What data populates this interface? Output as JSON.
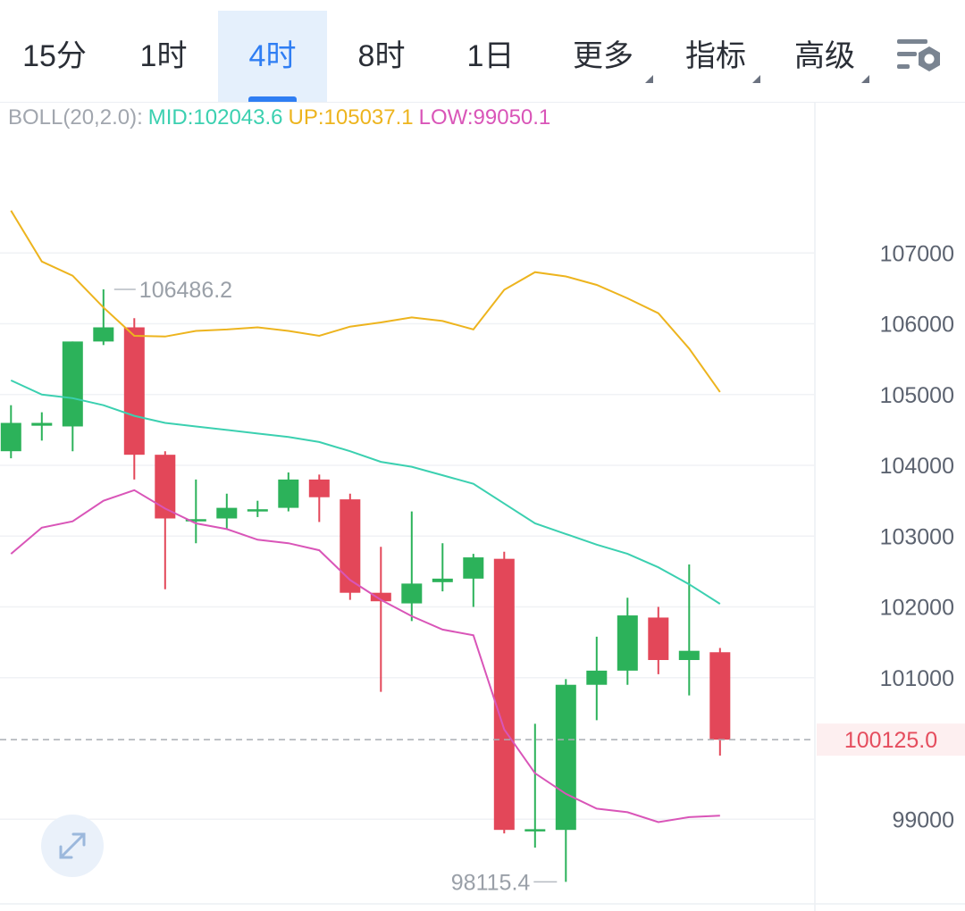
{
  "tabs": [
    {
      "label": "15分",
      "active": false,
      "dropdown": false
    },
    {
      "label": "1时",
      "active": false,
      "dropdown": false
    },
    {
      "label": "4时",
      "active": true,
      "dropdown": false
    },
    {
      "label": "8时",
      "active": false,
      "dropdown": false
    },
    {
      "label": "1日",
      "active": false,
      "dropdown": false
    },
    {
      "label": "更多",
      "active": false,
      "dropdown": true
    },
    {
      "label": "指标",
      "active": false,
      "dropdown": true
    },
    {
      "label": "高级",
      "active": false,
      "dropdown": true
    }
  ],
  "icons": {
    "settings": "chart-settings-icon",
    "expand": "expand-icon"
  },
  "indicator": {
    "name": "BOLL(20,2.0):",
    "mid": "MID:102043.6",
    "up": "UP:105037.1",
    "low": "LOW:99050.1"
  },
  "colors": {
    "up_candle": "#2cb25a",
    "down_candle": "#e34759",
    "mid_line": "#3bd0b0",
    "upper_line": "#edb41e",
    "lower_line": "#d955b8",
    "accent": "#2f7ef3",
    "current_price": "#e54d5e"
  },
  "chart_data": {
    "type": "candlestick",
    "y_ticks": [
      99000,
      101000,
      102000,
      103000,
      104000,
      105000,
      106000,
      107000
    ],
    "ylim": [
      98000,
      108000
    ],
    "grid": true,
    "current_price": 100125.0,
    "current_price_label": "100125.0",
    "annotations": [
      {
        "label": "106486.2",
        "value": 106486.2,
        "candle_index": 3
      },
      {
        "label": "98115.4",
        "value": 98115.4,
        "candle_index": 18
      }
    ],
    "candles": [
      {
        "open": 104200,
        "close": 104600,
        "high": 104850,
        "low": 104100
      },
      {
        "open": 104560,
        "close": 104600,
        "high": 104750,
        "low": 104350
      },
      {
        "open": 104550,
        "close": 105750,
        "high": 105750,
        "low": 104200
      },
      {
        "open": 105750,
        "close": 105950,
        "high": 106486.2,
        "low": 105700
      },
      {
        "open": 105950,
        "close": 104150,
        "high": 106080,
        "low": 103800
      },
      {
        "open": 104150,
        "close": 103250,
        "high": 104200,
        "low": 102250
      },
      {
        "open": 103220,
        "close": 103240,
        "high": 103800,
        "low": 102900
      },
      {
        "open": 103250,
        "close": 103400,
        "high": 103600,
        "low": 103100
      },
      {
        "open": 103350,
        "close": 103380,
        "high": 103500,
        "low": 103270
      },
      {
        "open": 103400,
        "close": 103800,
        "high": 103900,
        "low": 103350
      },
      {
        "open": 103800,
        "close": 103550,
        "high": 103870,
        "low": 103200
      },
      {
        "open": 103520,
        "close": 102200,
        "high": 103600,
        "low": 102100
      },
      {
        "open": 102200,
        "close": 102080,
        "high": 102850,
        "low": 100800
      },
      {
        "open": 102050,
        "close": 102330,
        "high": 103350,
        "low": 101800
      },
      {
        "open": 102350,
        "close": 102400,
        "high": 102900,
        "low": 102220
      },
      {
        "open": 102400,
        "close": 102700,
        "high": 102750,
        "low": 102000
      },
      {
        "open": 102680,
        "close": 98850,
        "high": 102780,
        "low": 98800
      },
      {
        "open": 98840,
        "close": 98860,
        "high": 100350,
        "low": 98600
      },
      {
        "open": 98850,
        "close": 100900,
        "high": 100980,
        "low": 98115.4
      },
      {
        "open": 100900,
        "close": 101100,
        "high": 101580,
        "low": 100400
      },
      {
        "open": 101100,
        "close": 101880,
        "high": 102130,
        "low": 100900
      },
      {
        "open": 101850,
        "close": 101250,
        "high": 102000,
        "low": 101050
      },
      {
        "open": 101250,
        "close": 101380,
        "high": 102600,
        "low": 100750
      },
      {
        "open": 101360,
        "close": 100125,
        "high": 101420,
        "low": 99900
      }
    ],
    "boll_mid": [
      105200,
      105000,
      104950,
      104850,
      104700,
      104600,
      104550,
      104500,
      104450,
      104400,
      104330,
      104200,
      104050,
      103980,
      103860,
      103740,
      103460,
      103180,
      103030,
      102880,
      102750,
      102560,
      102320,
      102043.6
    ],
    "boll_upper": [
      107600,
      106880,
      106680,
      106230,
      105830,
      105820,
      105900,
      105920,
      105950,
      105900,
      105830,
      105960,
      106020,
      106090,
      106040,
      105920,
      106480,
      106730,
      106670,
      106550,
      106360,
      106150,
      105650,
      105037.1
    ],
    "boll_lower": [
      102750,
      103120,
      103210,
      103500,
      103650,
      103390,
      103180,
      103100,
      102950,
      102900,
      102800,
      102380,
      102100,
      101870,
      101680,
      101600,
      100270,
      99650,
      99360,
      99150,
      99100,
      98960,
      99030,
      99050.1
    ]
  }
}
